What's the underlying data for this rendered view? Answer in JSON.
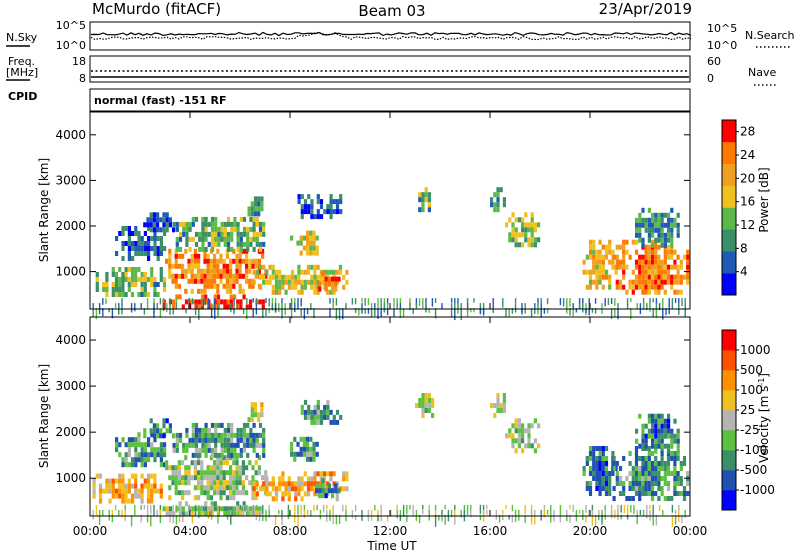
{
  "header": {
    "station": "McMurdo (fitACF)",
    "beam": "Beam 03",
    "date": "23/Apr/2019"
  },
  "noise_panel": {
    "left_label": "N.Sky",
    "right_label": "N.Search",
    "left_ticks": [
      "10^5",
      "10^0"
    ],
    "right_ticks": [
      "10^5",
      "10^0"
    ]
  },
  "freq_panel": {
    "left_label_1": "Freq.",
    "left_label_2": "[MHz]",
    "cpid_label": "CPID",
    "right_label": "Nave",
    "left_ticks": [
      "18",
      "8"
    ],
    "right_ticks": [
      "60",
      "0"
    ]
  },
  "cpid_text": "normal (fast) -151 RF",
  "chart_data": [
    {
      "type": "heatmap",
      "title": "",
      "parameter": "Power",
      "ylabel": "Slant Range [km]",
      "xlabel": "",
      "ylim": [
        180,
        4500
      ],
      "x_range_hours": [
        0,
        24
      ],
      "y_ticks": [
        "1000",
        "2000",
        "3000",
        "4000"
      ],
      "colorbar": {
        "label": "Power [dB]",
        "ticks": [
          "4",
          "8",
          "12",
          "16",
          "20",
          "24",
          "28"
        ],
        "range": [
          0,
          30
        ],
        "colors": [
          "#0000ff",
          "#1f5ab5",
          "#3a8f68",
          "#5cb84a",
          "#f0c020",
          "#f0a020",
          "#ff7800",
          "#ff0000"
        ]
      },
      "regions": [
        {
          "x0": 0.1,
          "x1": 3.0,
          "y0": 550,
          "y1": 1100,
          "level": 0.42
        },
        {
          "x0": 1.0,
          "x1": 3.0,
          "y0": 1300,
          "y1": 2000,
          "level": 0.2
        },
        {
          "x0": 2.0,
          "x1": 3.3,
          "y0": 1900,
          "y1": 2300,
          "level": 0.2
        },
        {
          "x0": 3.0,
          "x1": 7.0,
          "y0": 600,
          "y1": 1500,
          "level": 0.75
        },
        {
          "x0": 3.3,
          "x1": 7.0,
          "y0": 1500,
          "y1": 2200,
          "level": 0.4
        },
        {
          "x0": 2.9,
          "x1": 6.9,
          "y0": 200,
          "y1": 500,
          "level": 0.95
        },
        {
          "x0": 6.5,
          "x1": 10.3,
          "y0": 600,
          "y1": 1150,
          "level": 0.55
        },
        {
          "x0": 6.3,
          "x1": 6.9,
          "y0": 2300,
          "y1": 2650,
          "level": 0.35
        },
        {
          "x0": 8.0,
          "x1": 9.1,
          "y0": 1450,
          "y1": 1900,
          "level": 0.55
        },
        {
          "x0": 9.0,
          "x1": 10.0,
          "y0": 600,
          "y1": 1000,
          "level": 0.8
        },
        {
          "x0": 8.3,
          "x1": 10.0,
          "y0": 2200,
          "y1": 2700,
          "level": 0.2
        },
        {
          "x0": 13.0,
          "x1": 13.7,
          "y0": 2400,
          "y1": 2850,
          "level": 0.35
        },
        {
          "x0": 16.6,
          "x1": 17.9,
          "y0": 1600,
          "y1": 2300,
          "level": 0.45
        },
        {
          "x0": 16.0,
          "x1": 16.6,
          "y0": 2350,
          "y1": 2850,
          "level": 0.25
        },
        {
          "x0": 19.7,
          "x1": 21.0,
          "y0": 650,
          "y1": 1700,
          "level": 0.6
        },
        {
          "x0": 20.9,
          "x1": 23.9,
          "y0": 550,
          "y1": 1700,
          "level": 0.75
        },
        {
          "x0": 21.8,
          "x1": 23.5,
          "y0": 1600,
          "y1": 2400,
          "level": 0.3
        },
        {
          "x0": 0.1,
          "x1": 23.9,
          "y0": 190,
          "y1": 420,
          "level": 0.3
        }
      ]
    },
    {
      "type": "heatmap",
      "title": "",
      "parameter": "Velocity",
      "ylabel": "Slant Range [km]",
      "xlabel": "Time UT",
      "ylim": [
        180,
        4500
      ],
      "x_range_hours": [
        0,
        24
      ],
      "x_ticks": [
        "00:00",
        "04:00",
        "08:00",
        "12:00",
        "16:00",
        "20:00",
        "00:00"
      ],
      "y_ticks": [
        "1000",
        "2000",
        "3000",
        "4000"
      ],
      "colorbar": {
        "label": "Velocity [m s^-1]",
        "ticks": [
          "1000",
          "500",
          "100",
          "25",
          "-25",
          "-100",
          "-500",
          "-1000"
        ],
        "colors": [
          "#0000ff",
          "#2050b0",
          "#3a8f68",
          "#5cc040",
          "#b4b4b4",
          "#f0c020",
          "#ff9000",
          "#ff5000",
          "#ff0000"
        ]
      },
      "regions": [
        {
          "x0": 0.1,
          "x1": 3.0,
          "y0": 550,
          "y1": 1100,
          "level": 0.65
        },
        {
          "x0": 1.0,
          "x1": 3.0,
          "y0": 1300,
          "y1": 2000,
          "level": 0.3
        },
        {
          "x0": 2.0,
          "x1": 3.3,
          "y0": 1900,
          "y1": 2300,
          "level": 0.25
        },
        {
          "x0": 3.0,
          "x1": 7.0,
          "y0": 600,
          "y1": 1500,
          "level": 0.45
        },
        {
          "x0": 3.3,
          "x1": 7.0,
          "y0": 1500,
          "y1": 2200,
          "level": 0.3
        },
        {
          "x0": 2.9,
          "x1": 6.9,
          "y0": 200,
          "y1": 500,
          "level": 0.4
        },
        {
          "x0": 6.5,
          "x1": 10.3,
          "y0": 600,
          "y1": 1150,
          "level": 0.65
        },
        {
          "x0": 6.3,
          "x1": 6.9,
          "y0": 2300,
          "y1": 2650,
          "level": 0.5
        },
        {
          "x0": 8.0,
          "x1": 9.1,
          "y0": 1450,
          "y1": 1900,
          "level": 0.3
        },
        {
          "x0": 9.0,
          "x1": 10.0,
          "y0": 600,
          "y1": 1000,
          "level": 0.25
        },
        {
          "x0": 8.3,
          "x1": 10.0,
          "y0": 2200,
          "y1": 2700,
          "level": 0.3
        },
        {
          "x0": 13.0,
          "x1": 13.7,
          "y0": 2400,
          "y1": 2850,
          "level": 0.5
        },
        {
          "x0": 16.6,
          "x1": 17.9,
          "y0": 1600,
          "y1": 2300,
          "level": 0.45
        },
        {
          "x0": 16.0,
          "x1": 16.6,
          "y0": 2350,
          "y1": 2850,
          "level": 0.5
        },
        {
          "x0": 19.7,
          "x1": 21.0,
          "y0": 650,
          "y1": 1700,
          "level": 0.25
        },
        {
          "x0": 20.9,
          "x1": 23.9,
          "y0": 550,
          "y1": 1700,
          "level": 0.3
        },
        {
          "x0": 21.8,
          "x1": 23.5,
          "y0": 1600,
          "y1": 2400,
          "level": 0.25
        },
        {
          "x0": 0.1,
          "x1": 23.9,
          "y0": 190,
          "y1": 420,
          "level": 0.45
        }
      ]
    }
  ]
}
